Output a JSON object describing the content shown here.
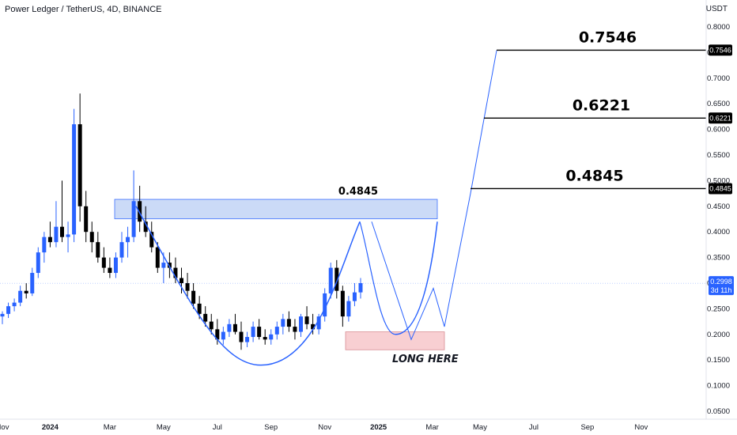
{
  "header": {
    "title": "Power Ledger / TetherUS, 4D, BINANCE",
    "currency": "USDT"
  },
  "chart_data": {
    "type": "candlestick",
    "symbol": "Power Ledger / TetherUS",
    "timeframe": "4D",
    "exchange": "BINANCE",
    "y_ticks": [
      "0.8000",
      "0.7500",
      "0.7000",
      "0.6500",
      "0.6000",
      "0.5500",
      "0.5000",
      "0.4500",
      "0.4000",
      "0.3500",
      "0.3000",
      "0.2500",
      "0.2000",
      "0.1500",
      "0.1000",
      "0.0500"
    ],
    "x_ticks": [
      {
        "label": "Nov",
        "t": 0
      },
      {
        "label": "2024",
        "t": 8
      },
      {
        "label": "Mar",
        "t": 18
      },
      {
        "label": "May",
        "t": 27
      },
      {
        "label": "Jul",
        "t": 36
      },
      {
        "label": "Sep",
        "t": 45
      },
      {
        "label": "Nov",
        "t": 54
      },
      {
        "label": "2025",
        "t": 63
      },
      {
        "label": "Mar",
        "t": 72
      },
      {
        "label": "May",
        "t": 80
      },
      {
        "label": "Jul",
        "t": 89
      },
      {
        "label": "Sep",
        "t": 98
      },
      {
        "label": "Nov",
        "t": 107
      }
    ],
    "colors": {
      "up": "#2962ff",
      "down": "#000000",
      "zone": "#c6d6f7",
      "zone_border": "#2962ff",
      "long_zone": "#f8cfd2",
      "long_zone_border": "#d88d93",
      "path": "#2962ff",
      "price_line": "#2962ff"
    },
    "candles": [
      [
        0.235,
        0.245,
        0.22,
        0.24
      ],
      [
        0.24,
        0.262,
        0.232,
        0.255
      ],
      [
        0.255,
        0.27,
        0.245,
        0.262
      ],
      [
        0.262,
        0.295,
        0.255,
        0.285
      ],
      [
        0.285,
        0.3,
        0.27,
        0.28
      ],
      [
        0.28,
        0.33,
        0.275,
        0.32
      ],
      [
        0.32,
        0.37,
        0.31,
        0.36
      ],
      [
        0.36,
        0.4,
        0.34,
        0.39
      ],
      [
        0.39,
        0.42,
        0.37,
        0.38
      ],
      [
        0.38,
        0.46,
        0.37,
        0.41
      ],
      [
        0.41,
        0.5,
        0.38,
        0.39
      ],
      [
        0.39,
        0.42,
        0.36,
        0.395
      ],
      [
        0.395,
        0.64,
        0.38,
        0.61
      ],
      [
        0.61,
        0.67,
        0.42,
        0.45
      ],
      [
        0.45,
        0.48,
        0.38,
        0.4
      ],
      [
        0.4,
        0.42,
        0.36,
        0.38
      ],
      [
        0.38,
        0.4,
        0.34,
        0.35
      ],
      [
        0.35,
        0.37,
        0.32,
        0.33
      ],
      [
        0.33,
        0.35,
        0.31,
        0.32
      ],
      [
        0.32,
        0.36,
        0.31,
        0.35
      ],
      [
        0.35,
        0.4,
        0.34,
        0.38
      ],
      [
        0.38,
        0.41,
        0.35,
        0.39
      ],
      [
        0.39,
        0.52,
        0.38,
        0.46
      ],
      [
        0.46,
        0.49,
        0.4,
        0.42
      ],
      [
        0.42,
        0.45,
        0.39,
        0.4
      ],
      [
        0.4,
        0.42,
        0.36,
        0.37
      ],
      [
        0.37,
        0.38,
        0.32,
        0.33
      ],
      [
        0.33,
        0.36,
        0.3,
        0.34
      ],
      [
        0.34,
        0.36,
        0.31,
        0.33
      ],
      [
        0.33,
        0.35,
        0.3,
        0.31
      ],
      [
        0.31,
        0.33,
        0.28,
        0.3
      ],
      [
        0.3,
        0.32,
        0.27,
        0.285
      ],
      [
        0.285,
        0.3,
        0.25,
        0.26
      ],
      [
        0.26,
        0.275,
        0.23,
        0.24
      ],
      [
        0.24,
        0.255,
        0.215,
        0.225
      ],
      [
        0.225,
        0.24,
        0.2,
        0.21
      ],
      [
        0.21,
        0.23,
        0.18,
        0.19
      ],
      [
        0.19,
        0.215,
        0.18,
        0.205
      ],
      [
        0.205,
        0.23,
        0.195,
        0.22
      ],
      [
        0.22,
        0.24,
        0.2,
        0.205
      ],
      [
        0.205,
        0.225,
        0.17,
        0.185
      ],
      [
        0.185,
        0.205,
        0.175,
        0.195
      ],
      [
        0.195,
        0.225,
        0.185,
        0.215
      ],
      [
        0.215,
        0.23,
        0.19,
        0.195
      ],
      [
        0.195,
        0.21,
        0.18,
        0.19
      ],
      [
        0.19,
        0.21,
        0.18,
        0.2
      ],
      [
        0.2,
        0.225,
        0.19,
        0.215
      ],
      [
        0.215,
        0.24,
        0.2,
        0.23
      ],
      [
        0.23,
        0.245,
        0.205,
        0.215
      ],
      [
        0.215,
        0.23,
        0.19,
        0.205
      ],
      [
        0.205,
        0.24,
        0.195,
        0.235
      ],
      [
        0.235,
        0.255,
        0.21,
        0.22
      ],
      [
        0.22,
        0.24,
        0.2,
        0.21
      ],
      [
        0.21,
        0.24,
        0.2,
        0.235
      ],
      [
        0.235,
        0.29,
        0.225,
        0.28
      ],
      [
        0.28,
        0.34,
        0.27,
        0.33
      ],
      [
        0.33,
        0.345,
        0.27,
        0.285
      ],
      [
        0.285,
        0.295,
        0.215,
        0.235
      ],
      [
        0.235,
        0.275,
        0.225,
        0.265
      ],
      [
        0.265,
        0.3,
        0.255,
        0.282
      ],
      [
        0.282,
        0.31,
        0.27,
        0.3
      ]
    ],
    "resistance_zone": {
      "top": 0.4635,
      "bottom": 0.4255,
      "label": "0.4845"
    },
    "long_zone": {
      "top": 0.205,
      "bottom": 0.17,
      "label": "LONG HERE"
    },
    "targets": [
      {
        "label": "0.7546",
        "price": 0.7546
      },
      {
        "label": "0.6221",
        "price": 0.6221
      },
      {
        "label": "0.4845",
        "price": 0.4845
      }
    ],
    "current_price": "0.2998",
    "countdown": "3d 11h"
  }
}
